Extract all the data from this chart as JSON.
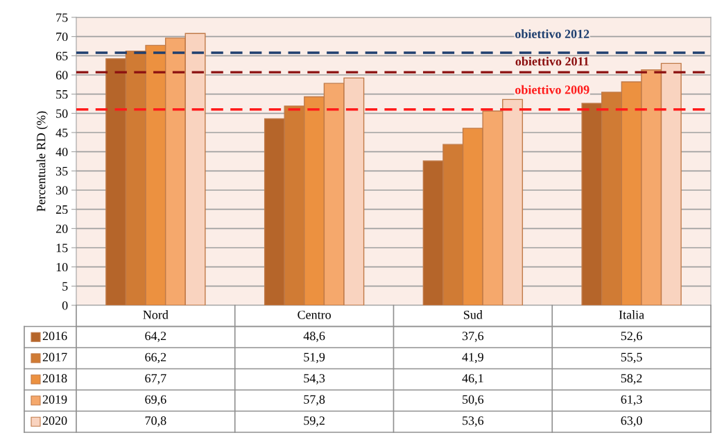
{
  "chart_data": {
    "type": "bar",
    "ylabel": "Percentuale RD (%)",
    "categories": [
      "Nord",
      "Centro",
      "Sud",
      "Italia"
    ],
    "series": [
      {
        "name": "2016",
        "color": "#b5652a",
        "values": [
          64.2,
          48.6,
          37.6,
          52.6
        ],
        "value_labels": [
          "64,2",
          "48,6",
          "37,6",
          "52,6"
        ]
      },
      {
        "name": "2017",
        "color": "#d07b34",
        "values": [
          66.2,
          51.9,
          41.9,
          55.5
        ],
        "value_labels": [
          "66,2",
          "51,9",
          "41,9",
          "55,5"
        ]
      },
      {
        "name": "2018",
        "color": "#ec9140",
        "values": [
          67.7,
          54.3,
          46.1,
          58.2
        ],
        "value_labels": [
          "67,7",
          "54,3",
          "46,1",
          "58,2"
        ]
      },
      {
        "name": "2019",
        "color": "#f5a86c",
        "values": [
          69.6,
          57.8,
          50.6,
          61.3
        ],
        "value_labels": [
          "69,6",
          "57,8",
          "50,6",
          "61,3"
        ]
      },
      {
        "name": "2020",
        "color": "#f9d3bf",
        "values": [
          70.8,
          59.2,
          53.6,
          63.0
        ],
        "value_labels": [
          "70,8",
          "59,2",
          "53,6",
          "63,0"
        ]
      }
    ],
    "ylim": [
      0,
      75
    ],
    "yticks": [
      0,
      5,
      10,
      15,
      20,
      25,
      30,
      35,
      40,
      45,
      50,
      55,
      60,
      65,
      70,
      75
    ],
    "grid": "y",
    "legend": "bottom",
    "ref_lines": [
      {
        "axis": "y",
        "value": 65.8,
        "label": "obiettivo 2012",
        "color": "#1f3f6f",
        "line_style": "dashed"
      },
      {
        "axis": "y",
        "value": 60.7,
        "label": "obiettivo 2011",
        "color": "#8b1010",
        "line_style": "dashed"
      },
      {
        "axis": "y",
        "value": 51,
        "label": "obiettivo 2009",
        "color": "#ff1a1a",
        "line_style": "dashed"
      }
    ]
  }
}
